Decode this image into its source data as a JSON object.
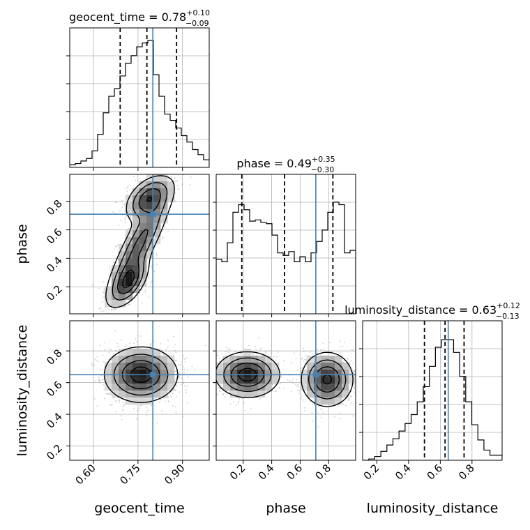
{
  "chart_data": {
    "type": "corner",
    "truth_color": "#4682b4",
    "parameters": [
      {
        "name": "geocent_time",
        "title_main": "geocent_time = 0.78",
        "err_plus": "+0.10",
        "err_minus": "−0.09",
        "range": [
          0.52,
          0.99
        ],
        "ticks": [
          0.6,
          0.75,
          0.9
        ],
        "tick_labels": [
          "0.60",
          "0.75",
          "0.90"
        ],
        "truth": 0.8,
        "quantiles": [
          0.69,
          0.78,
          0.88
        ],
        "hist": [
          0.02,
          0.03,
          0.05,
          0.07,
          0.13,
          0.26,
          0.43,
          0.56,
          0.62,
          0.72,
          0.82,
          0.88,
          0.95,
          0.98,
          1.0,
          0.73,
          0.56,
          0.42,
          0.37,
          0.31,
          0.25,
          0.2,
          0.14,
          0.1,
          0.06
        ]
      },
      {
        "name": "phase",
        "title_main": "phase = 0.49",
        "err_plus": "+0.35",
        "err_minus": "−0.30",
        "range": [
          0.01,
          0.99
        ],
        "ticks": [
          0.2,
          0.4,
          0.6,
          0.8
        ],
        "tick_labels": [
          "0.2",
          "0.4",
          "0.6",
          "0.8"
        ],
        "truth": 0.71,
        "quantiles": [
          0.19,
          0.49,
          0.83
        ],
        "hist": [
          0.43,
          0.41,
          0.56,
          0.8,
          0.86,
          0.82,
          0.73,
          0.74,
          0.72,
          0.71,
          0.62,
          0.48,
          0.46,
          0.49,
          0.41,
          0.45,
          0.41,
          0.48,
          0.57,
          0.66,
          0.8,
          0.88,
          0.86,
          0.48,
          0.5
        ]
      },
      {
        "name": "luminosity_distance",
        "title_main": "luminosity_distance = 0.63",
        "err_plus": "+0.12",
        "err_minus": "−0.13",
        "range": [
          0.11,
          0.99
        ],
        "ticks": [
          0.2,
          0.4,
          0.6,
          0.8
        ],
        "tick_labels": [
          "0.2",
          "0.4",
          "0.6",
          "0.8"
        ],
        "truth": 0.65,
        "quantiles": [
          0.5,
          0.63,
          0.75
        ],
        "hist": [
          0.0,
          0.01,
          0.03,
          0.07,
          0.12,
          0.17,
          0.23,
          0.29,
          0.36,
          0.46,
          0.58,
          0.74,
          0.89,
          0.95,
          0.95,
          0.85,
          0.66,
          0.46,
          0.28,
          0.16,
          0.08,
          0.04,
          0.04
        ]
      }
    ],
    "pairs": [
      {
        "x": 0,
        "y": 1,
        "modes": [
          {
            "mx": 0.72,
            "my": 0.235,
            "sx": 0.032,
            "sy": 0.085,
            "rho": 0.55,
            "w": 0.55
          },
          {
            "mx": 0.785,
            "my": 0.82,
            "sx": 0.038,
            "sy": 0.08,
            "rho": 0.45,
            "w": 0.55
          },
          {
            "mx": 0.755,
            "my": 0.5,
            "sx": 0.055,
            "sy": 0.2,
            "rho": 0.85,
            "w": 0.45
          }
        ]
      },
      {
        "x": 0,
        "y": 2,
        "modes": [
          {
            "mx": 0.76,
            "my": 0.65,
            "sx": 0.06,
            "sy": 0.085,
            "rho": 0.0,
            "w": 1.0
          }
        ]
      },
      {
        "x": 1,
        "y": 2,
        "modes": [
          {
            "mx": 0.23,
            "my": 0.65,
            "sx": 0.11,
            "sy": 0.07,
            "rho": 0.0,
            "w": 1.0
          },
          {
            "mx": 0.79,
            "my": 0.62,
            "sx": 0.09,
            "sy": 0.085,
            "rho": 0.0,
            "w": 0.9
          }
        ]
      }
    ],
    "labels": {
      "xlabels": [
        "geocent_time",
        "phase",
        "luminosity_distance"
      ],
      "ylabels": [
        "phase",
        "luminosity_distance"
      ]
    },
    "grid": true
  }
}
